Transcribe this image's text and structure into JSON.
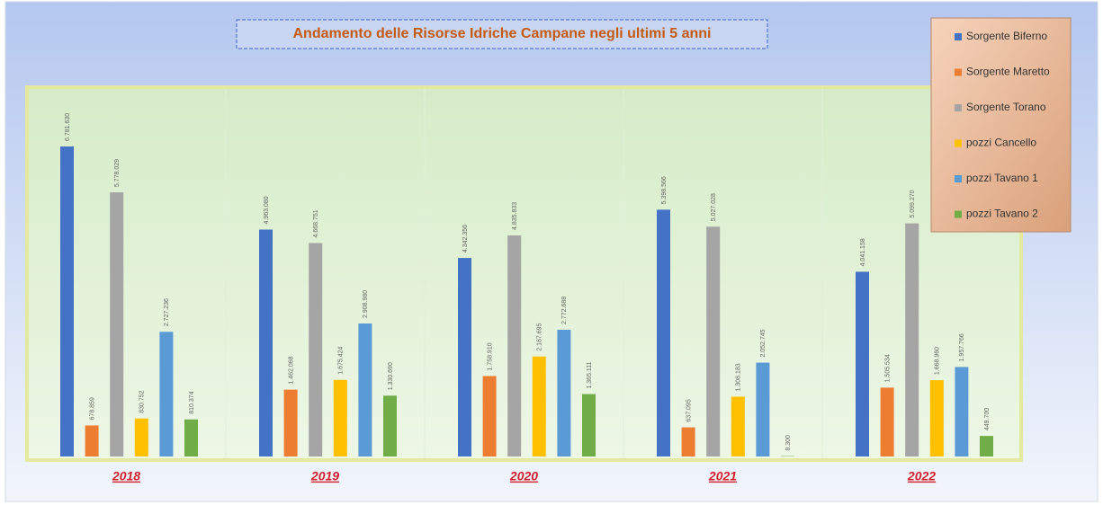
{
  "chart_data": {
    "type": "bar",
    "title": "Andamento delle Risorse Idriche Campane negli ultimi 5 anni",
    "categories": [
      "2018",
      "2019",
      "2020",
      "2021",
      "2022"
    ],
    "series": [
      {
        "name": "Sorgente Biferno",
        "color": "#4472c4",
        "values": [
          6781630,
          4963080,
          4342356,
          5398566,
          4041158
        ],
        "value_labels": [
          "6.781.630",
          "4.963.080",
          "4.342.356",
          "5.398.566",
          "4.041.158"
        ]
      },
      {
        "name": "Sorgente Maretto",
        "color": "#ed7d31",
        "values": [
          678859,
          1462068,
          1758910,
          637095,
          1505534
        ],
        "value_labels": [
          "678.859",
          "1.462.068",
          "1.758.910",
          "637.095",
          "1.505.534"
        ]
      },
      {
        "name": "Sorgente Torano",
        "color": "#a5a5a5",
        "values": [
          5778029,
          4668751,
          4835833,
          5027028,
          5099270
        ],
        "value_labels": [
          "5.778.029",
          "4.668.751",
          "4.835.833",
          "5.027.028",
          "5.099.270"
        ]
      },
      {
        "name": "pozzi Cancello",
        "color": "#ffc000",
        "values": [
          830752,
          1675424,
          2187695,
          1308183,
          1668960
        ],
        "value_labels": [
          "830.752",
          "1.675.424",
          "2.187.695",
          "1.308.183",
          "1.668.960"
        ]
      },
      {
        "name": "pozzi Tavano 1",
        "color": "#5b9bd5",
        "values": [
          2727236,
          2908980,
          2772688,
          2052745,
          1957766
        ],
        "value_labels": [
          "2.727.236",
          "2.908.980",
          "2.772.688",
          "2.052.745",
          "1.957.766"
        ]
      },
      {
        "name": "pozzi Tavano 2",
        "color": "#70ad47",
        "values": [
          810374,
          1330690,
          1365111,
          8300,
          449700
        ],
        "value_labels": [
          "810.374",
          "1.330.690",
          "1.365.111",
          "8.300",
          "449.700"
        ]
      }
    ]
  }
}
